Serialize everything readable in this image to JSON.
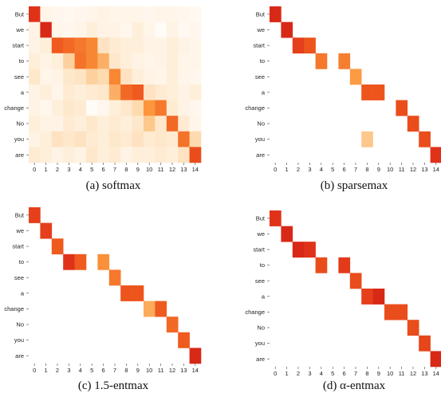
{
  "y_tokens": [
    "But",
    "we",
    "start",
    "to",
    "see",
    "a",
    "change",
    "No",
    "you",
    "are"
  ],
  "x_ticks": [
    "0",
    "1",
    "2",
    "3",
    "4",
    "5",
    "6",
    "7",
    "8",
    "9",
    "10",
    "11",
    "12",
    "13",
    "14"
  ],
  "chart_data": [
    {
      "type": "heatmap",
      "caption": "(a) softmax",
      "rows": [
        "But",
        "we",
        "start",
        "to",
        "see",
        "a",
        "change",
        "No",
        "you",
        "are"
      ],
      "columns": [
        0,
        1,
        2,
        3,
        4,
        5,
        6,
        7,
        8,
        9,
        10,
        11,
        12,
        13,
        14
      ],
      "values": [
        [
          0.85,
          0.05,
          0.04,
          0.03,
          0.04,
          0.05,
          0.06,
          0.05,
          0.05,
          0.05,
          0.04,
          0.05,
          0.05,
          0.04,
          0.03
        ],
        [
          0.06,
          0.9,
          0.05,
          0.04,
          0.05,
          0.08,
          0.06,
          0.06,
          0.04,
          0.08,
          0.05,
          0.02,
          0.06,
          0.03,
          0.04
        ],
        [
          0.06,
          0.08,
          0.7,
          0.65,
          0.6,
          0.55,
          0.15,
          0.1,
          0.08,
          0.08,
          0.06,
          0.06,
          0.08,
          0.06,
          0.05
        ],
        [
          0.08,
          0.06,
          0.08,
          0.25,
          0.62,
          0.55,
          0.4,
          0.12,
          0.08,
          0.06,
          0.05,
          0.06,
          0.08,
          0.05,
          0.05
        ],
        [
          0.12,
          0.05,
          0.06,
          0.12,
          0.14,
          0.25,
          0.2,
          0.55,
          0.15,
          0.08,
          0.06,
          0.05,
          0.08,
          0.05,
          0.04
        ],
        [
          0.06,
          0.08,
          0.05,
          0.1,
          0.08,
          0.1,
          0.12,
          0.4,
          0.65,
          0.7,
          0.15,
          0.1,
          0.08,
          0.06,
          0.08
        ],
        [
          0.06,
          0.04,
          0.08,
          0.12,
          0.1,
          0.02,
          0.04,
          0.08,
          0.12,
          0.2,
          0.5,
          0.6,
          0.1,
          0.06,
          0.04
        ],
        [
          0.08,
          0.06,
          0.06,
          0.1,
          0.08,
          0.12,
          0.08,
          0.1,
          0.08,
          0.12,
          0.3,
          0.12,
          0.65,
          0.1,
          0.05
        ],
        [
          0.06,
          0.08,
          0.15,
          0.12,
          0.15,
          0.1,
          0.08,
          0.12,
          0.1,
          0.15,
          0.1,
          0.12,
          0.1,
          0.62,
          0.2
        ],
        [
          0.1,
          0.08,
          0.06,
          0.08,
          0.06,
          0.12,
          0.08,
          0.1,
          0.06,
          0.08,
          0.08,
          0.1,
          0.08,
          0.15,
          0.75
        ]
      ]
    },
    {
      "type": "heatmap",
      "caption": "(b) sparsemax",
      "rows": [
        "But",
        "we",
        "start",
        "to",
        "see",
        "a",
        "change",
        "No",
        "you",
        "are"
      ],
      "columns": [
        0,
        1,
        2,
        3,
        4,
        5,
        6,
        7,
        8,
        9,
        10,
        11,
        12,
        13,
        14
      ],
      "values": [
        [
          0.9,
          0,
          0,
          0,
          0,
          0,
          0,
          0,
          0,
          0,
          0,
          0,
          0,
          0,
          0
        ],
        [
          0,
          0.9,
          0,
          0,
          0,
          0,
          0,
          0,
          0,
          0,
          0,
          0,
          0,
          0,
          0
        ],
        [
          0,
          0,
          0.8,
          0.72,
          0,
          0,
          0,
          0,
          0,
          0,
          0,
          0,
          0,
          0,
          0
        ],
        [
          0,
          0,
          0,
          0,
          0.6,
          0,
          0.58,
          0,
          0,
          0,
          0,
          0,
          0,
          0,
          0
        ],
        [
          0,
          0,
          0,
          0,
          0,
          0,
          0,
          0.48,
          0,
          0,
          0,
          0,
          0,
          0,
          0
        ],
        [
          0,
          0,
          0,
          0,
          0,
          0,
          0,
          0,
          0.72,
          0.72,
          0,
          0,
          0,
          0,
          0
        ],
        [
          0,
          0,
          0,
          0,
          0,
          0,
          0,
          0,
          0,
          0,
          0,
          0.75,
          0,
          0,
          0
        ],
        [
          0,
          0,
          0,
          0,
          0,
          0,
          0,
          0,
          0,
          0,
          0,
          0,
          0.75,
          0,
          0
        ],
        [
          0,
          0,
          0,
          0,
          0,
          0,
          0,
          0,
          0.3,
          0,
          0,
          0,
          0,
          0.75,
          0
        ],
        [
          0,
          0,
          0,
          0,
          0,
          0,
          0,
          0,
          0,
          0,
          0,
          0,
          0,
          0,
          0.85
        ]
      ]
    },
    {
      "type": "heatmap",
      "caption": "(c) 1.5-entmax",
      "rows": [
        "But",
        "we",
        "start",
        "to",
        "see",
        "a",
        "change",
        "No",
        "you",
        "are"
      ],
      "columns": [
        0,
        1,
        2,
        3,
        4,
        5,
        6,
        7,
        8,
        9,
        10,
        11,
        12,
        13,
        14
      ],
      "values": [
        [
          0.8,
          0,
          0,
          0,
          0,
          0,
          0,
          0,
          0,
          0,
          0,
          0,
          0,
          0,
          0
        ],
        [
          0,
          0.8,
          0,
          0,
          0,
          0,
          0,
          0,
          0,
          0,
          0,
          0,
          0,
          0,
          0
        ],
        [
          0,
          0,
          0.7,
          0,
          0,
          0,
          0,
          0,
          0,
          0,
          0,
          0,
          0,
          0,
          0
        ],
        [
          0,
          0,
          0,
          0.85,
          0.7,
          0,
          0.52,
          0,
          0,
          0,
          0,
          0,
          0,
          0,
          0
        ],
        [
          0,
          0,
          0,
          0,
          0,
          0,
          0,
          0.6,
          0,
          0,
          0,
          0,
          0,
          0,
          0
        ],
        [
          0,
          0,
          0,
          0,
          0,
          0,
          0,
          0,
          0.72,
          0.72,
          0,
          0,
          0,
          0,
          0
        ],
        [
          0,
          0,
          0,
          0,
          0,
          0,
          0,
          0,
          0,
          0,
          0.42,
          0.7,
          0,
          0,
          0
        ],
        [
          0,
          0,
          0,
          0,
          0,
          0,
          0,
          0,
          0,
          0,
          0,
          0,
          0.65,
          0,
          0
        ],
        [
          0,
          0,
          0,
          0,
          0,
          0,
          0,
          0,
          0,
          0,
          0,
          0,
          0,
          0.7,
          0
        ],
        [
          0,
          0,
          0,
          0,
          0,
          0,
          0,
          0,
          0,
          0,
          0,
          0,
          0,
          0,
          0.9
        ]
      ]
    },
    {
      "type": "heatmap",
      "caption": "(d) α-entmax",
      "rows": [
        "But",
        "we",
        "start",
        "to",
        "see",
        "a",
        "change",
        "No",
        "you",
        "are"
      ],
      "columns": [
        0,
        1,
        2,
        3,
        4,
        5,
        6,
        7,
        8,
        9,
        10,
        11,
        12,
        13,
        14
      ],
      "values": [
        [
          0.85,
          0,
          0,
          0,
          0,
          0,
          0,
          0,
          0,
          0,
          0,
          0,
          0,
          0,
          0
        ],
        [
          0,
          0.9,
          0,
          0,
          0,
          0,
          0,
          0,
          0,
          0,
          0,
          0,
          0,
          0,
          0
        ],
        [
          0,
          0,
          0.9,
          0.85,
          0,
          0,
          0,
          0,
          0,
          0,
          0,
          0,
          0,
          0,
          0
        ],
        [
          0,
          0,
          0,
          0,
          0.75,
          0,
          0.82,
          0,
          0,
          0,
          0,
          0,
          0,
          0,
          0
        ],
        [
          0,
          0,
          0,
          0,
          0,
          0,
          0,
          0.75,
          0,
          0,
          0,
          0,
          0,
          0,
          0
        ],
        [
          0,
          0,
          0,
          0,
          0,
          0,
          0,
          0,
          0.8,
          0.9,
          0,
          0,
          0,
          0,
          0
        ],
        [
          0,
          0,
          0,
          0,
          0,
          0,
          0,
          0,
          0,
          0,
          0.75,
          0.75,
          0,
          0,
          0
        ],
        [
          0,
          0,
          0,
          0,
          0,
          0,
          0,
          0,
          0,
          0,
          0,
          0,
          0.75,
          0,
          0
        ],
        [
          0,
          0,
          0,
          0,
          0,
          0,
          0,
          0,
          0,
          0,
          0,
          0,
          0,
          0.78,
          0
        ],
        [
          0,
          0,
          0,
          0,
          0,
          0,
          0,
          0,
          0,
          0,
          0,
          0,
          0,
          0,
          0.9
        ]
      ]
    }
  ]
}
